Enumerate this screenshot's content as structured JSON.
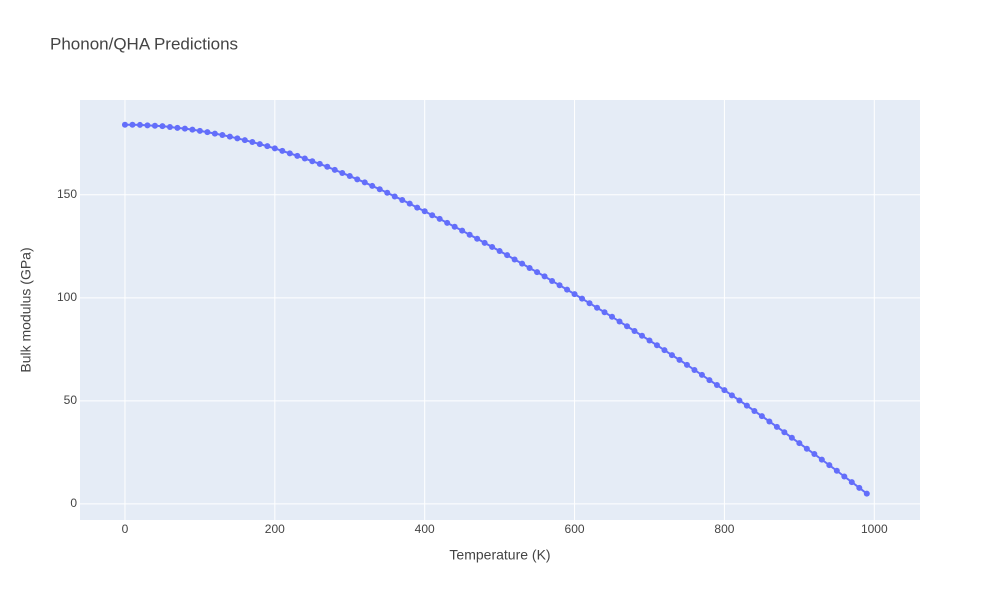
{
  "chart_data": {
    "type": "line",
    "title": "Phonon/QHA Predictions",
    "x_label": "Temperature (K)",
    "y_label": "Bulk modulus (GPa)",
    "x": [
      0,
      10,
      20,
      30,
      40,
      50,
      60,
      70,
      80,
      90,
      100,
      110,
      120,
      130,
      140,
      150,
      160,
      170,
      180,
      190,
      200,
      210,
      220,
      230,
      240,
      250,
      260,
      270,
      280,
      290,
      300,
      310,
      320,
      330,
      340,
      350,
      360,
      370,
      380,
      390,
      400,
      410,
      420,
      430,
      440,
      450,
      460,
      470,
      480,
      490,
      500,
      510,
      520,
      530,
      540,
      550,
      560,
      570,
      580,
      590,
      600,
      610,
      620,
      630,
      640,
      650,
      660,
      670,
      680,
      690,
      700,
      710,
      720,
      730,
      740,
      750,
      760,
      770,
      780,
      790,
      800,
      810,
      820,
      830,
      840,
      850,
      860,
      870,
      880,
      890,
      900,
      910,
      920,
      930,
      940,
      950,
      960,
      970,
      980,
      990
    ],
    "series": [
      {
        "name": "Bulk modulus",
        "color": "#636efa",
        "values": [
          184.0,
          184.0,
          183.9,
          183.7,
          183.5,
          183.3,
          182.9,
          182.5,
          182.1,
          181.6,
          181.0,
          180.4,
          179.7,
          179.0,
          178.2,
          177.4,
          176.5,
          175.6,
          174.6,
          173.6,
          172.5,
          171.3,
          170.1,
          168.9,
          167.6,
          166.3,
          165.0,
          163.6,
          162.1,
          160.6,
          159.1,
          157.5,
          156.0,
          154.3,
          152.7,
          151.0,
          149.2,
          147.5,
          145.7,
          143.8,
          142.0,
          140.1,
          138.3,
          136.4,
          134.5,
          132.6,
          130.6,
          128.7,
          126.7,
          124.7,
          122.7,
          120.7,
          118.6,
          116.6,
          114.5,
          112.5,
          110.4,
          108.2,
          106.1,
          104.0,
          101.8,
          99.6,
          97.4,
          95.2,
          93.0,
          90.8,
          88.5,
          86.2,
          83.9,
          81.6,
          79.3,
          77.0,
          74.6,
          72.2,
          69.9,
          67.5,
          65.0,
          62.6,
          60.1,
          57.7,
          55.2,
          52.7,
          50.2,
          47.7,
          45.1,
          42.6,
          40.0,
          37.4,
          34.8,
          32.1,
          29.5,
          26.8,
          24.2,
          21.5,
          18.8,
          16.1,
          13.3,
          10.6,
          7.8,
          5.0
        ]
      }
    ],
    "xlim": [
      -60,
      1061
    ],
    "ylim": [
      -7.8,
      196
    ],
    "xticks": [
      0,
      200,
      400,
      600,
      800,
      1000
    ],
    "yticks": [
      0,
      50,
      100,
      150
    ],
    "grid": true
  }
}
